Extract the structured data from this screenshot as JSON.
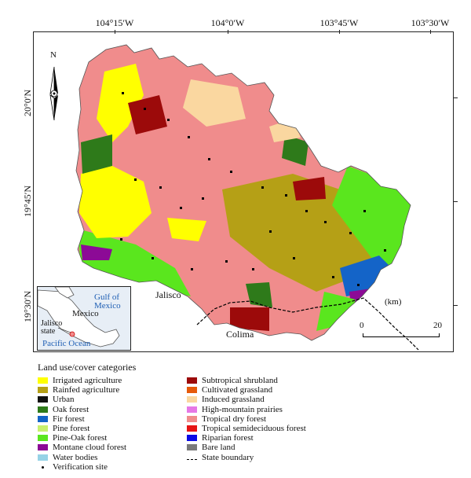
{
  "longitude_labels": [
    "104°15′W",
    "104°0′W",
    "103°45′W",
    "103°30′W"
  ],
  "latitude_labels": [
    "20°0′N",
    "19°45′N",
    "19°30′N"
  ],
  "north_label": "N",
  "place_labels": {
    "jalisco": "Jalisco",
    "colima": "Colima"
  },
  "inset": {
    "gulf": "Gulf of Mexico",
    "mexico": "Mexico",
    "jalisco_state": "Jalisco state",
    "pacific": "Pacific Ocean"
  },
  "scale": {
    "unit": "(km)",
    "zero": "0",
    "max": "20"
  },
  "legend": {
    "title": "Land use/cover categories",
    "col1": [
      {
        "label": "Irrigated agriculture",
        "color": "#ffff00"
      },
      {
        "label": "Rainfed agriculture",
        "color": "#b5a016"
      },
      {
        "label": "Urban",
        "color": "#111111"
      },
      {
        "label": "Oak forest",
        "color": "#2e7a1a"
      },
      {
        "label": "Fir forest",
        "color": "#1464c8"
      },
      {
        "label": "Pine forest",
        "color": "#c8f06e"
      },
      {
        "label": "Pine-Oak forest",
        "color": "#5ae61e"
      },
      {
        "label": "Montane cloud forest",
        "color": "#8c0a96"
      },
      {
        "label": "Water bodies",
        "color": "#96d2e6"
      },
      {
        "label": "Verification site",
        "color": "#000000"
      }
    ],
    "col2": [
      {
        "label": "Subtropical shrubland",
        "color": "#9c0a0a"
      },
      {
        "label": "Cultivated grassland",
        "color": "#e65a0a"
      },
      {
        "label": "Induced grassland",
        "color": "#fad7a0"
      },
      {
        "label": "High-mountain prairies",
        "color": "#e678e6"
      },
      {
        "label": "Tropical dry forest",
        "color": "#f08c8c"
      },
      {
        "label": "Tropical semideciduous forest",
        "color": "#e61414"
      },
      {
        "label": "Riparian forest",
        "color": "#0a0ae6"
      },
      {
        "label": "Bare land",
        "color": "#7a7a7a"
      },
      {
        "label": "State boundary",
        "color": "#000000"
      }
    ]
  }
}
